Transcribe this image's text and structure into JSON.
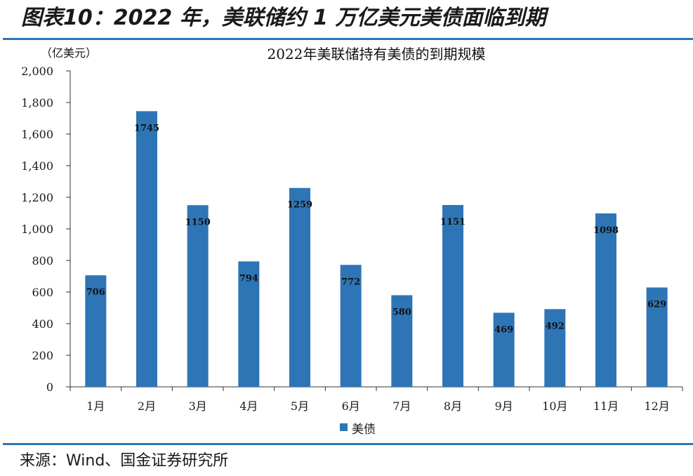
{
  "figure": {
    "title": "图表10：2022 年，美联储约 1 万亿美元美债面临到期",
    "source": "来源：Wind、国金证券研究所"
  },
  "chart_data": {
    "type": "bar",
    "title": "2022年美联储持有美债的到期规模",
    "unit_label": "（亿美元）",
    "categories": [
      "1月",
      "2月",
      "3月",
      "4月",
      "5月",
      "6月",
      "7月",
      "8月",
      "9月",
      "10月",
      "11月",
      "12月"
    ],
    "series": [
      {
        "name": "美债",
        "values": [
          706,
          1745,
          1150,
          794,
          1259,
          772,
          580,
          1151,
          469,
          492,
          1098,
          629
        ]
      }
    ],
    "ylim": [
      0,
      2000
    ],
    "yticks": [
      "0",
      "200",
      "400",
      "600",
      "800",
      "1,000",
      "1,200",
      "1,400",
      "1,600",
      "1,800",
      "2,000"
    ],
    "legend_position": "bottom",
    "grid": false,
    "bar_color": "#2e75b6"
  }
}
